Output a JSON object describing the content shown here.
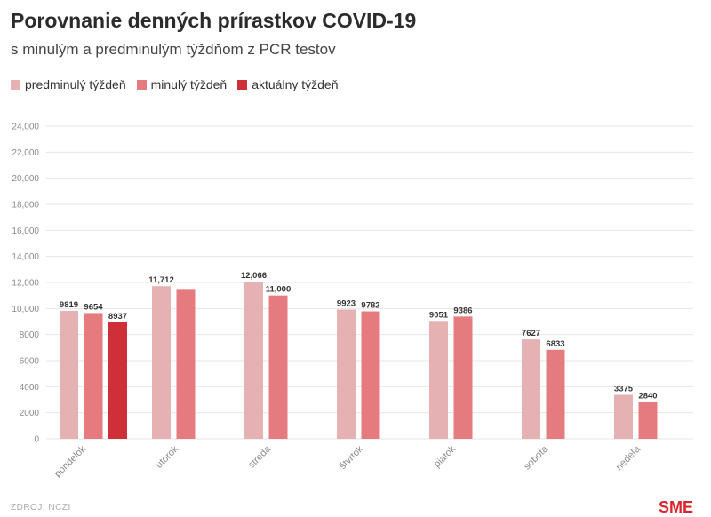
{
  "title": "Porovnanie denných prírastkov COVID-19",
  "subtitle": "s minulým a predminulým týždňom z PCR testov",
  "source": "ZDROJ: NCZI",
  "logo": "SME",
  "colors": {
    "predminuly": "#e5b1b2",
    "minuly": "#e57b7f",
    "aktualny": "#cf3037",
    "grid": "#e6e6e6",
    "axis_text": "#8a8a8a",
    "value_text": "#333333"
  },
  "chart_data": {
    "type": "bar",
    "title": "Porovnanie denných prírastkov COVID-19",
    "subtitle": "s minulým a predminulým týždňom z PCR testov",
    "categories": [
      "pondelok",
      "utorok",
      "streda",
      "štvrtok",
      "piatok",
      "sobota",
      "nedeľa"
    ],
    "series": [
      {
        "name": "predminulý týždeň",
        "color": "#e5b1b2",
        "values": [
          9819,
          11712,
          12066,
          9923,
          9051,
          7627,
          3375
        ],
        "labels": [
          "9819",
          "11,712",
          "12,066",
          "9923",
          "9051",
          "7627",
          "3375"
        ]
      },
      {
        "name": "minulý týždeň",
        "color": "#e57b7f",
        "values": [
          9654,
          11500,
          11000,
          9782,
          9386,
          6833,
          2840
        ],
        "labels": [
          "9654",
          "",
          "11,000",
          "9782",
          "9386",
          "6833",
          "2840"
        ]
      },
      {
        "name": "aktuálny týždeň",
        "color": "#cf3037",
        "values": [
          8937,
          null,
          null,
          null,
          null,
          null,
          null
        ],
        "labels": [
          "8937",
          "",
          "",
          "",
          "",
          "",
          ""
        ]
      }
    ],
    "y_ticks": [
      "0",
      "2000",
      "4000",
      "6000",
      "8000",
      "10,000",
      "12,000",
      "14,000",
      "16,000",
      "18,000",
      "20,000",
      "22,000",
      "24,000"
    ],
    "ylim": [
      0,
      24000
    ],
    "grid": true,
    "legend_position": "top-left"
  }
}
